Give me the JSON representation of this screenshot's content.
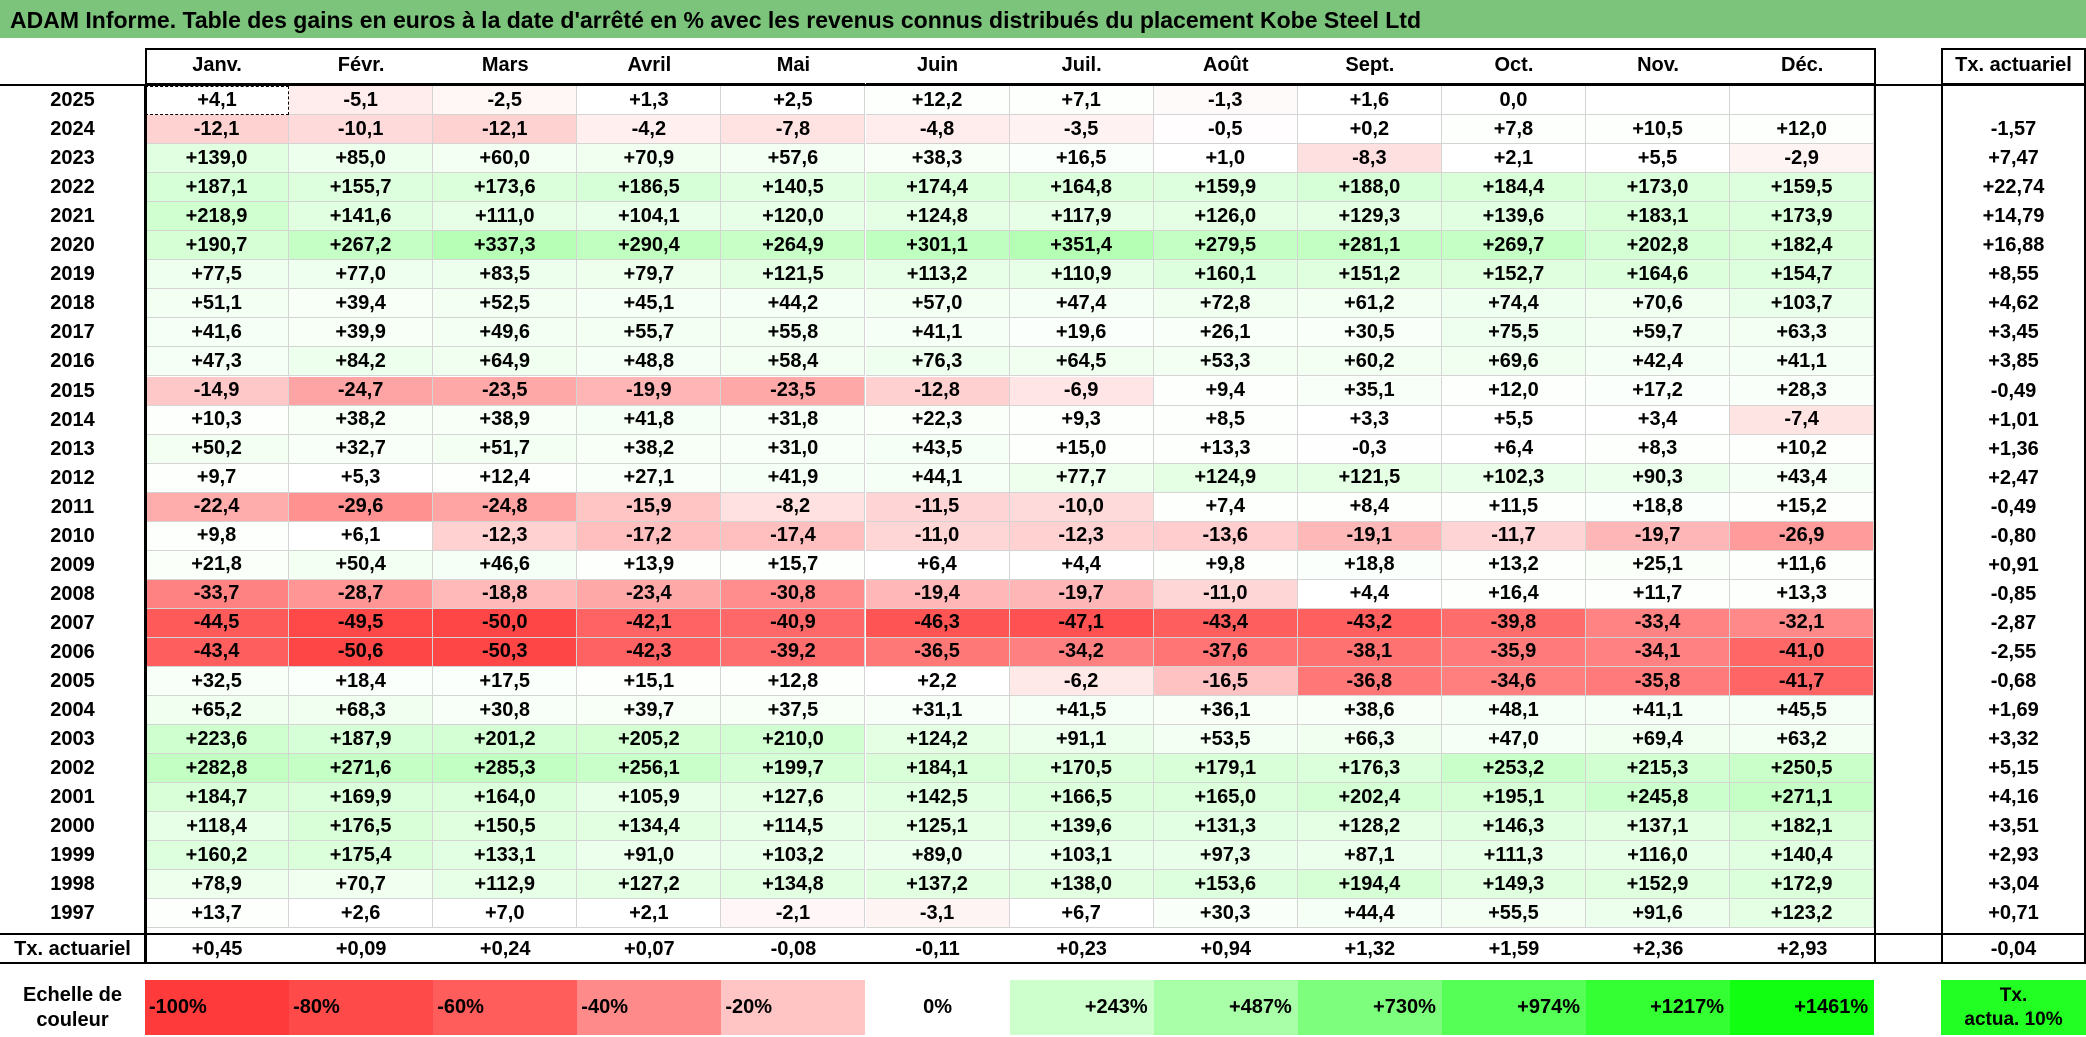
{
  "title": "ADAM Informe. Table des gains en euros à la date d'arrêté en % avec les revenus connus distribués du placement Kobe Steel Ltd",
  "months": [
    "Janv.",
    "Févr.",
    "Mars",
    "Avril",
    "Mai",
    "Juin",
    "Juil.",
    "Août",
    "Sept.",
    "Oct.",
    "Nov.",
    "Déc."
  ],
  "annual_header": "Tx. actuariel",
  "rows": [
    {
      "year": "2025",
      "values": [
        "+4,1",
        "-5,1",
        "-2,5",
        "+1,3",
        "+2,5",
        "+12,2",
        "+7,1",
        "-1,3",
        "+1,6",
        "0,0",
        "",
        ""
      ],
      "annual": ""
    },
    {
      "year": "2024",
      "values": [
        "-12,1",
        "-10,1",
        "-12,1",
        "-4,2",
        "-7,8",
        "-4,8",
        "-3,5",
        "-0,5",
        "+0,2",
        "+7,8",
        "+10,5",
        "+12,0"
      ],
      "annual": "-1,57"
    },
    {
      "year": "2023",
      "values": [
        "+139,0",
        "+85,0",
        "+60,0",
        "+70,9",
        "+57,6",
        "+38,3",
        "+16,5",
        "+1,0",
        "-8,3",
        "+2,1",
        "+5,5",
        "-2,9"
      ],
      "annual": "+7,47"
    },
    {
      "year": "2022",
      "values": [
        "+187,1",
        "+155,7",
        "+173,6",
        "+186,5",
        "+140,5",
        "+174,4",
        "+164,8",
        "+159,9",
        "+188,0",
        "+184,4",
        "+173,0",
        "+159,5"
      ],
      "annual": "+22,74"
    },
    {
      "year": "2021",
      "values": [
        "+218,9",
        "+141,6",
        "+111,0",
        "+104,1",
        "+120,0",
        "+124,8",
        "+117,9",
        "+126,0",
        "+129,3",
        "+139,6",
        "+183,1",
        "+173,9"
      ],
      "annual": "+14,79"
    },
    {
      "year": "2020",
      "values": [
        "+190,7",
        "+267,2",
        "+337,3",
        "+290,4",
        "+264,9",
        "+301,1",
        "+351,4",
        "+279,5",
        "+281,1",
        "+269,7",
        "+202,8",
        "+182,4"
      ],
      "annual": "+16,88"
    },
    {
      "year": "2019",
      "values": [
        "+77,5",
        "+77,0",
        "+83,5",
        "+79,7",
        "+121,5",
        "+113,2",
        "+110,9",
        "+160,1",
        "+151,2",
        "+152,7",
        "+164,6",
        "+154,7"
      ],
      "annual": "+8,55"
    },
    {
      "year": "2018",
      "values": [
        "+51,1",
        "+39,4",
        "+52,5",
        "+45,1",
        "+44,2",
        "+57,0",
        "+47,4",
        "+72,8",
        "+61,2",
        "+74,4",
        "+70,6",
        "+103,7"
      ],
      "annual": "+4,62"
    },
    {
      "year": "2017",
      "values": [
        "+41,6",
        "+39,9",
        "+49,6",
        "+55,7",
        "+55,8",
        "+41,1",
        "+19,6",
        "+26,1",
        "+30,5",
        "+75,5",
        "+59,7",
        "+63,3"
      ],
      "annual": "+3,45"
    },
    {
      "year": "2016",
      "values": [
        "+47,3",
        "+84,2",
        "+64,9",
        "+48,8",
        "+58,4",
        "+76,3",
        "+64,5",
        "+53,3",
        "+60,2",
        "+69,6",
        "+42,4",
        "+41,1"
      ],
      "annual": "+3,85"
    },
    {
      "year": "2015",
      "values": [
        "-14,9",
        "-24,7",
        "-23,5",
        "-19,9",
        "-23,5",
        "-12,8",
        "-6,9",
        "+9,4",
        "+35,1",
        "+12,0",
        "+17,2",
        "+28,3"
      ],
      "annual": "-0,49"
    },
    {
      "year": "2014",
      "values": [
        "+10,3",
        "+38,2",
        "+38,9",
        "+41,8",
        "+31,8",
        "+22,3",
        "+9,3",
        "+8,5",
        "+3,3",
        "+5,5",
        "+3,4",
        "-7,4"
      ],
      "annual": "+1,01"
    },
    {
      "year": "2013",
      "values": [
        "+50,2",
        "+32,7",
        "+51,7",
        "+38,2",
        "+31,0",
        "+43,5",
        "+15,0",
        "+13,3",
        "-0,3",
        "+6,4",
        "+8,3",
        "+10,2"
      ],
      "annual": "+1,36"
    },
    {
      "year": "2012",
      "values": [
        "+9,7",
        "+5,3",
        "+12,4",
        "+27,1",
        "+41,9",
        "+44,1",
        "+77,7",
        "+124,9",
        "+121,5",
        "+102,3",
        "+90,3",
        "+43,4"
      ],
      "annual": "+2,47"
    },
    {
      "year": "2011",
      "values": [
        "-22,4",
        "-29,6",
        "-24,8",
        "-15,9",
        "-8,2",
        "-11,5",
        "-10,0",
        "+7,4",
        "+8,4",
        "+11,5",
        "+18,8",
        "+15,2"
      ],
      "annual": "-0,49"
    },
    {
      "year": "2010",
      "values": [
        "+9,8",
        "+6,1",
        "-12,3",
        "-17,2",
        "-17,4",
        "-11,0",
        "-12,3",
        "-13,6",
        "-19,1",
        "-11,7",
        "-19,7",
        "-26,9"
      ],
      "annual": "-0,80"
    },
    {
      "year": "2009",
      "values": [
        "+21,8",
        "+50,4",
        "+46,6",
        "+13,9",
        "+15,7",
        "+6,4",
        "+4,4",
        "+9,8",
        "+18,8",
        "+13,2",
        "+25,1",
        "+11,6"
      ],
      "annual": "+0,91"
    },
    {
      "year": "2008",
      "values": [
        "-33,7",
        "-28,7",
        "-18,8",
        "-23,4",
        "-30,8",
        "-19,4",
        "-19,7",
        "-11,0",
        "+4,4",
        "+16,4",
        "+11,7",
        "+13,3"
      ],
      "annual": "-0,85"
    },
    {
      "year": "2007",
      "values": [
        "-44,5",
        "-49,5",
        "-50,0",
        "-42,1",
        "-40,9",
        "-46,3",
        "-47,1",
        "-43,4",
        "-43,2",
        "-39,8",
        "-33,4",
        "-32,1"
      ],
      "annual": "-2,87"
    },
    {
      "year": "2006",
      "values": [
        "-43,4",
        "-50,6",
        "-50,3",
        "-42,3",
        "-39,2",
        "-36,5",
        "-34,2",
        "-37,6",
        "-38,1",
        "-35,9",
        "-34,1",
        "-41,0"
      ],
      "annual": "-2,55"
    },
    {
      "year": "2005",
      "values": [
        "+32,5",
        "+18,4",
        "+17,5",
        "+15,1",
        "+12,8",
        "+2,2",
        "-6,2",
        "-16,5",
        "-36,8",
        "-34,6",
        "-35,8",
        "-41,7"
      ],
      "annual": "-0,68"
    },
    {
      "year": "2004",
      "values": [
        "+65,2",
        "+68,3",
        "+30,8",
        "+39,7",
        "+37,5",
        "+31,1",
        "+41,5",
        "+36,1",
        "+38,6",
        "+48,1",
        "+41,1",
        "+45,5"
      ],
      "annual": "+1,69"
    },
    {
      "year": "2003",
      "values": [
        "+223,6",
        "+187,9",
        "+201,2",
        "+205,2",
        "+210,0",
        "+124,2",
        "+91,1",
        "+53,5",
        "+66,3",
        "+47,0",
        "+69,4",
        "+63,2"
      ],
      "annual": "+3,32"
    },
    {
      "year": "2002",
      "values": [
        "+282,8",
        "+271,6",
        "+285,3",
        "+256,1",
        "+199,7",
        "+184,1",
        "+170,5",
        "+179,1",
        "+176,3",
        "+253,2",
        "+215,3",
        "+250,5"
      ],
      "annual": "+5,15"
    },
    {
      "year": "2001",
      "values": [
        "+184,7",
        "+169,9",
        "+164,0",
        "+105,9",
        "+127,6",
        "+142,5",
        "+166,5",
        "+165,0",
        "+202,4",
        "+195,1",
        "+245,8",
        "+271,1"
      ],
      "annual": "+4,16"
    },
    {
      "year": "2000",
      "values": [
        "+118,4",
        "+176,5",
        "+150,5",
        "+134,4",
        "+114,5",
        "+125,1",
        "+139,6",
        "+131,3",
        "+128,2",
        "+146,3",
        "+137,1",
        "+182,1"
      ],
      "annual": "+3,51"
    },
    {
      "year": "1999",
      "values": [
        "+160,2",
        "+175,4",
        "+133,1",
        "+91,0",
        "+103,2",
        "+89,0",
        "+103,1",
        "+97,3",
        "+87,1",
        "+111,3",
        "+116,0",
        "+140,4"
      ],
      "annual": "+2,93"
    },
    {
      "year": "1998",
      "values": [
        "+78,9",
        "+70,7",
        "+112,9",
        "+127,2",
        "+134,8",
        "+137,2",
        "+138,0",
        "+153,6",
        "+194,4",
        "+149,3",
        "+152,9",
        "+172,9"
      ],
      "annual": "+3,04"
    },
    {
      "year": "1997",
      "values": [
        "+13,7",
        "+2,6",
        "+7,0",
        "+2,1",
        "-2,1",
        "-3,1",
        "+6,7",
        "+30,3",
        "+44,4",
        "+55,5",
        "+91,6",
        "+123,2"
      ],
      "annual": "+0,71"
    }
  ],
  "footer": {
    "label": "Tx. actuariel",
    "values": [
      "+0,45",
      "+0,09",
      "+0,24",
      "+0,07",
      "-0,08",
      "-0,11",
      "+0,23",
      "+0,94",
      "+1,32",
      "+1,59",
      "+2,36",
      "+2,93"
    ],
    "annual": "-0,04"
  },
  "scale": {
    "label_line1": "Echelle de",
    "label_line2": "couleur",
    "items": [
      {
        "text": "-100%",
        "color": "#ff3a3a"
      },
      {
        "text": "-80%",
        "color": "#ff4a4a"
      },
      {
        "text": "-60%",
        "color": "#ff5c5c"
      },
      {
        "text": "-40%",
        "color": "#ff8a8a"
      },
      {
        "text": "-20%",
        "color": "#ffc4c4"
      },
      {
        "text": "0%",
        "color": "#ffffff"
      },
      {
        "text": "+243%",
        "color": "#ccffcc"
      },
      {
        "text": "+487%",
        "color": "#a8ffa8"
      },
      {
        "text": "+730%",
        "color": "#7dff7d"
      },
      {
        "text": "+974%",
        "color": "#55ff55"
      },
      {
        "text": "+1217%",
        "color": "#33ff33"
      },
      {
        "text": "+1461%",
        "color": "#11ff11"
      }
    ],
    "annual_line1": "Tx.",
    "annual_line2": "actua. 10%",
    "annual_color": "#22ff22"
  },
  "colors": {
    "title_bg": "#7cc47c",
    "negative_max": "#ff3a3a",
    "positive_max": "#11ff11"
  }
}
